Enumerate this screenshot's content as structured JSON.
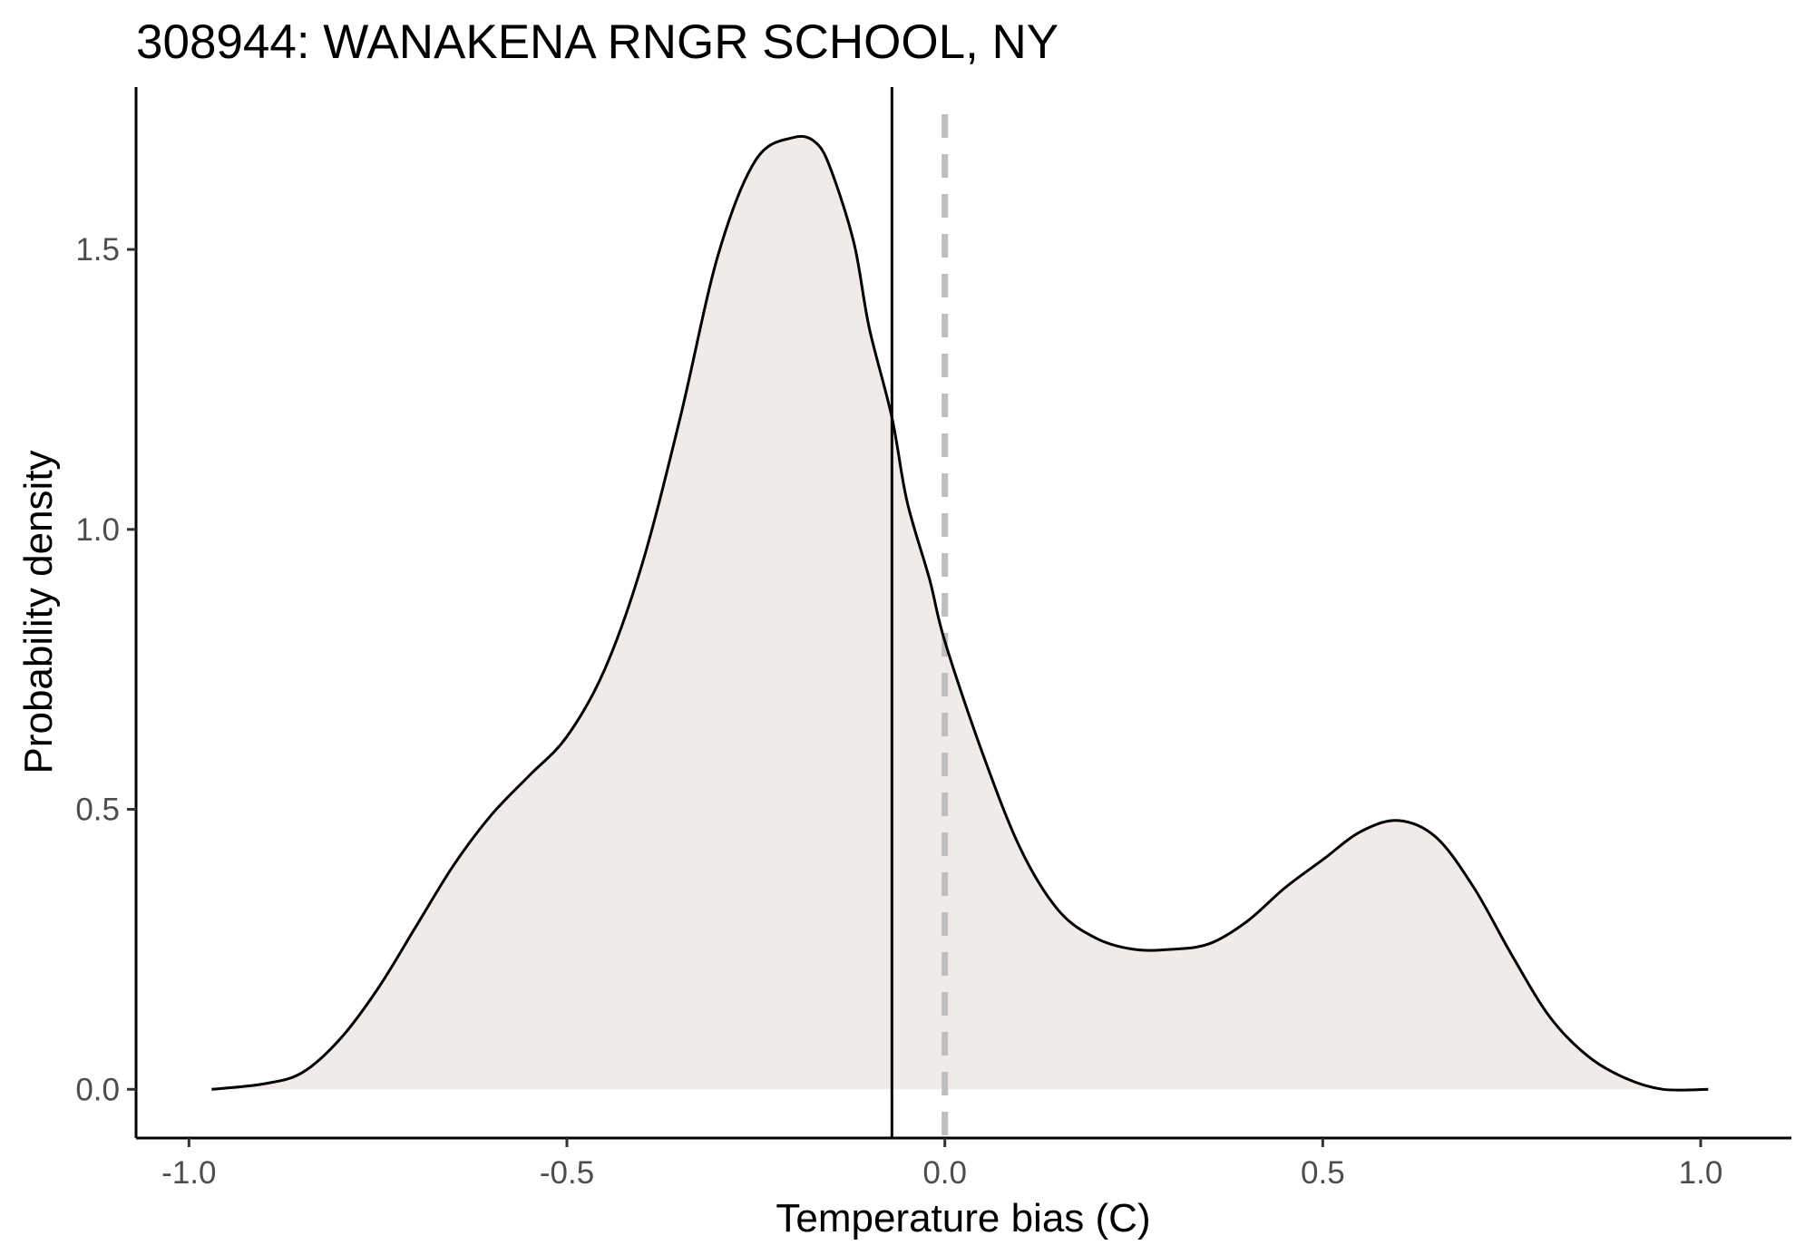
{
  "chart_data": {
    "type": "area",
    "title": "308944: WANAKENA RNGR SCHOOL, NY",
    "xlabel": "Temperature bias (C)",
    "ylabel": "Probability density",
    "xlim": [
      -1.07,
      1.12
    ],
    "ylim": [
      -0.087,
      1.79
    ],
    "x_ticks": [
      {
        "value": -1.0,
        "label": "-1.0"
      },
      {
        "value": -0.5,
        "label": "-0.5"
      },
      {
        "value": 0.0,
        "label": "0.0"
      },
      {
        "value": 0.5,
        "label": "0.5"
      },
      {
        "value": 1.0,
        "label": "1.0"
      }
    ],
    "y_ticks": [
      {
        "value": 0.0,
        "label": "0.0"
      },
      {
        "value": 0.5,
        "label": "0.5"
      },
      {
        "value": 1.0,
        "label": "1.0"
      },
      {
        "value": 1.5,
        "label": "1.5"
      }
    ],
    "grid": false,
    "fill_color": "#f0ebe8",
    "line_color": "#000000",
    "series": [
      {
        "x": [
          -0.97,
          -0.9,
          -0.85,
          -0.8,
          -0.75,
          -0.7,
          -0.65,
          -0.6,
          -0.55,
          -0.5,
          -0.45,
          -0.4,
          -0.35,
          -0.3,
          -0.25,
          -0.2,
          -0.17,
          -0.15,
          -0.12,
          -0.1,
          -0.07,
          -0.05,
          -0.02,
          0.0,
          0.05,
          0.1,
          0.15,
          0.2,
          0.25,
          0.3,
          0.35,
          0.4,
          0.45,
          0.5,
          0.55,
          0.6,
          0.65,
          0.7,
          0.75,
          0.8,
          0.85,
          0.9,
          0.95,
          1.01
        ],
        "values": [
          0.0,
          0.01,
          0.03,
          0.09,
          0.18,
          0.29,
          0.4,
          0.49,
          0.56,
          0.63,
          0.75,
          0.94,
          1.2,
          1.49,
          1.66,
          1.7,
          1.69,
          1.64,
          1.51,
          1.36,
          1.2,
          1.05,
          0.91,
          0.8,
          0.6,
          0.43,
          0.32,
          0.27,
          0.25,
          0.25,
          0.26,
          0.3,
          0.36,
          0.41,
          0.46,
          0.48,
          0.45,
          0.36,
          0.24,
          0.13,
          0.06,
          0.02,
          0.0,
          0.0
        ]
      }
    ],
    "vlines": [
      {
        "x": -0.07,
        "style": "solid",
        "color": "#000000"
      },
      {
        "x": 0.0,
        "style": "dashed",
        "color": "#bebebe"
      }
    ]
  }
}
